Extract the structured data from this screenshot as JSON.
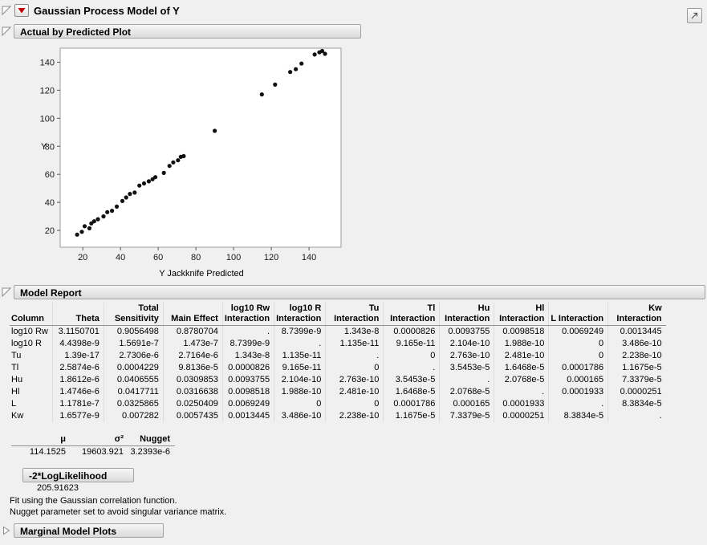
{
  "window": {
    "title": "Gaussian Process Model of Y"
  },
  "icons": {
    "red_triangle_menu": "red-triangle-down",
    "disclosure_open": "open-corner-triangle",
    "disclosure_collapsed": "right-triangle",
    "corner_button": "diagonal-arrow"
  },
  "sections": {
    "actual_by_predicted": {
      "title": "Actual by Predicted Plot"
    },
    "model_report": {
      "title": "Model Report"
    },
    "neg2loglikelihood": {
      "label": "-2*LogLikelihood",
      "value": "205.91623"
    },
    "marginal_model_plots": {
      "title": "Marginal Model Plots"
    }
  },
  "chart_data": {
    "type": "scatter",
    "title": "Actual by Predicted Plot",
    "xlabel": "Y Jackknife Predicted",
    "ylabel": "Y",
    "xlim": [
      8,
      157
    ],
    "ylim": [
      8,
      150
    ],
    "x_ticks": [
      20,
      40,
      60,
      80,
      100,
      120,
      140
    ],
    "y_ticks": [
      20,
      40,
      60,
      80,
      100,
      120,
      140
    ],
    "grid": false,
    "legend": false,
    "points": [
      [
        17,
        17
      ],
      [
        19.5,
        19
      ],
      [
        21,
        23
      ],
      [
        23.5,
        21.5
      ],
      [
        24.5,
        25
      ],
      [
        26,
        26.5
      ],
      [
        28,
        28
      ],
      [
        31,
        30
      ],
      [
        33,
        33
      ],
      [
        35.5,
        34
      ],
      [
        38,
        37
      ],
      [
        41,
        41
      ],
      [
        43,
        43.5
      ],
      [
        45,
        46
      ],
      [
        47.5,
        47
      ],
      [
        50,
        52
      ],
      [
        52.5,
        53.5
      ],
      [
        55,
        55
      ],
      [
        57,
        56.5
      ],
      [
        58.5,
        58
      ],
      [
        63,
        61
      ],
      [
        66,
        66
      ],
      [
        68,
        68.5
      ],
      [
        70.5,
        70
      ],
      [
        72,
        72.5
      ],
      [
        73.5,
        73
      ],
      [
        90,
        91
      ],
      [
        115,
        117
      ],
      [
        122,
        124
      ],
      [
        130,
        133
      ],
      [
        133,
        135
      ],
      [
        136,
        139
      ],
      [
        143,
        145.5
      ],
      [
        145.5,
        147
      ],
      [
        147,
        148
      ],
      [
        148.5,
        146
      ]
    ]
  },
  "model_table": {
    "headers": [
      [
        "Column"
      ],
      [
        "Theta"
      ],
      [
        "Total",
        "Sensitivity"
      ],
      [
        "Main Effect"
      ],
      [
        "log10 Rw",
        "Interaction"
      ],
      [
        "log10 R",
        "Interaction"
      ],
      [
        "Tu",
        "Interaction"
      ],
      [
        "Tl",
        "Interaction"
      ],
      [
        "Hu",
        "Interaction"
      ],
      [
        "Hl",
        "Interaction"
      ],
      [
        "L Interaction"
      ],
      [
        "Kw",
        "Interaction"
      ]
    ],
    "rows": [
      {
        "label": "log10 Rw",
        "values": [
          "3.1150701",
          "0.9056498",
          "0.8780704",
          ".",
          "8.7399e-9",
          "1.343e-8",
          "0.0000826",
          "0.0093755",
          "0.0098518",
          "0.0069249",
          "0.0013445"
        ]
      },
      {
        "label": "log10 R",
        "values": [
          "4.4398e-9",
          "1.5691e-7",
          "1.473e-7",
          "8.7399e-9",
          ".",
          "1.135e-11",
          "9.165e-11",
          "2.104e-10",
          "1.988e-10",
          "0",
          "3.486e-10"
        ]
      },
      {
        "label": "Tu",
        "values": [
          "1.39e-17",
          "2.7306e-6",
          "2.7164e-6",
          "1.343e-8",
          "1.135e-11",
          ".",
          "0",
          "2.763e-10",
          "2.481e-10",
          "0",
          "2.238e-10"
        ]
      },
      {
        "label": "Tl",
        "values": [
          "2.5874e-6",
          "0.0004229",
          "9.8136e-5",
          "0.0000826",
          "9.165e-11",
          "0",
          ".",
          "3.5453e-5",
          "1.6468e-5",
          "0.0001786",
          "1.1675e-5"
        ]
      },
      {
        "label": "Hu",
        "values": [
          "1.8612e-6",
          "0.0406555",
          "0.0309853",
          "0.0093755",
          "2.104e-10",
          "2.763e-10",
          "3.5453e-5",
          ".",
          "2.0768e-5",
          "0.000165",
          "7.3379e-5"
        ]
      },
      {
        "label": "Hl",
        "values": [
          "1.4746e-6",
          "0.0417711",
          "0.0316638",
          "0.0098518",
          "1.988e-10",
          "2.481e-10",
          "1.6468e-5",
          "2.0768e-5",
          ".",
          "0.0001933",
          "0.0000251"
        ]
      },
      {
        "label": "L",
        "values": [
          "1.1781e-7",
          "0.0325865",
          "0.0250409",
          "0.0069249",
          "0",
          "0",
          "0.0001786",
          "0.000165",
          "0.0001933",
          ".",
          "8.3834e-5"
        ]
      },
      {
        "label": "Kw",
        "values": [
          "1.6577e-9",
          "0.007282",
          "0.0057435",
          "0.0013445",
          "3.486e-10",
          "2.238e-10",
          "1.1675e-5",
          "7.3379e-5",
          "0.0000251",
          "8.3834e-5",
          "."
        ]
      }
    ]
  },
  "param_table": {
    "headers": [
      "μ",
      "σ²",
      "Nugget"
    ],
    "values": [
      "114.1525",
      "19603.921",
      "3.2393e-6"
    ]
  },
  "footnotes": [
    "Fit using the Gaussian correlation function.",
    "Nugget parameter set to avoid singular variance matrix."
  ]
}
